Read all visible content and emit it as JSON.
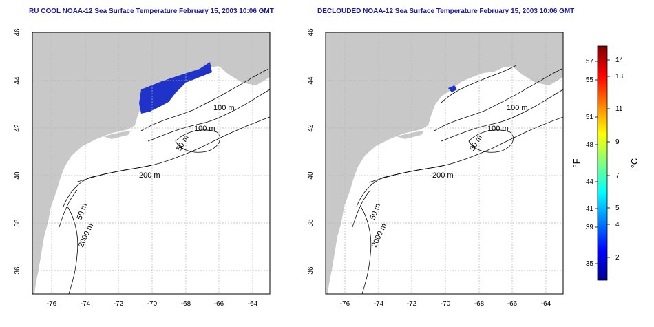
{
  "panels": [
    {
      "title": "RU COOL NOAA-12 Sea Surface Temperature February 15, 2003 10:06 GMT",
      "contour_labels": [
        "100 m",
        "100 m",
        "50 m",
        "200 m",
        "50 m",
        "2000 m"
      ]
    },
    {
      "title": "DECLOUDED NOAA-12 Sea Surface Temperature February 15, 2003 10:06 GMT",
      "contour_labels": [
        "100 m",
        "100 m",
        "50 m",
        "200 m",
        "50 m",
        "2000 m"
      ]
    }
  ],
  "axes": {
    "lon_ticks": [
      "-76",
      "-74",
      "-72",
      "-70",
      "-68",
      "-66",
      "-64"
    ],
    "lat_ticks": [
      "46",
      "44",
      "42",
      "40",
      "38",
      "36"
    ]
  },
  "colorbar": {
    "f_label": "°F",
    "c_label": "°C",
    "f_ticks": [
      "57",
      "55",
      "51",
      "48",
      "44",
      "41",
      "39",
      "35"
    ],
    "c_ticks": [
      "14",
      "13",
      "11",
      "9",
      "7",
      "5",
      "4",
      "2"
    ]
  },
  "colors": {
    "land": "#c8c8c8",
    "grid": "#b4b4b4",
    "title": "#1a1aa0",
    "sst_cold": "#1f33c8"
  }
}
